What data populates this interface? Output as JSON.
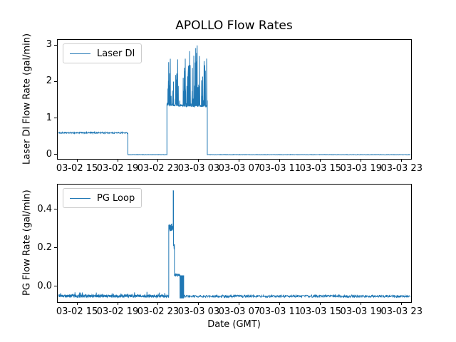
{
  "figure": {
    "background": "#ffffff",
    "title": "APOLLO Flow Rates"
  },
  "chart_data": [
    {
      "type": "line",
      "title": "APOLLO Flow Rates",
      "ylabel": "Laser DI Flow Rate (gal/min)",
      "xlabel": "",
      "line_color": "#1f77b4",
      "grid": false,
      "legend_position": "upper left",
      "x_axis": {
        "unit": "hours since 03-02 00:00 (GMT)",
        "xlim": [
          13.03,
          47.93
        ],
        "ticks": [
          {
            "t": 15,
            "label": "03-02 15"
          },
          {
            "t": 19,
            "label": "03-02 19"
          },
          {
            "t": 23,
            "label": "03-02 23"
          },
          {
            "t": 27,
            "label": "03-03 03"
          },
          {
            "t": 31,
            "label": "03-03 07"
          },
          {
            "t": 35,
            "label": "03-03 11"
          },
          {
            "t": 39,
            "label": "03-03 15"
          },
          {
            "t": 43,
            "label": "03-03 19"
          },
          {
            "t": 47,
            "label": "03-03 23"
          }
        ]
      },
      "y_axis": {
        "ylim": [
          -0.117,
          3.156
        ],
        "ticks": [
          {
            "v": 0,
            "label": "0"
          },
          {
            "v": 1,
            "label": "1"
          },
          {
            "v": 2,
            "label": "2"
          },
          {
            "v": 3,
            "label": "3"
          }
        ]
      },
      "series": [
        {
          "name": "Laser DI",
          "segments": [
            {
              "t_start": 13.03,
              "t_end": 19.92,
              "level": 0.6,
              "noise": 0.02,
              "note": "steady flow ~0.6 gal/min"
            },
            {
              "t_start": 19.92,
              "t_end": 23.79,
              "level": 0.0,
              "noise": 0.005,
              "note": "flow off"
            },
            {
              "t_start": 23.79,
              "t_end": 24.9,
              "level": 1.36,
              "noise": 0.025,
              "spike_prob": 0.33,
              "spike_max": 2.72,
              "note": "active, dense spikes to ~2.7"
            },
            {
              "t_start": 24.9,
              "t_end": 25.42,
              "level": 1.35,
              "noise": 0.02,
              "spike_prob": 0.07,
              "spike_max": 2.75,
              "note": "calmer interval"
            },
            {
              "t_start": 25.42,
              "t_end": 27.79,
              "level": 1.34,
              "noise": 0.025,
              "spike_prob": 0.38,
              "spike_max": 3.02,
              "note": "active, dense spikes to ~3.0"
            },
            {
              "t_start": 27.79,
              "t_end": 47.93,
              "level": 0.0,
              "noise": 0.005,
              "note": "flow off"
            }
          ]
        }
      ]
    },
    {
      "type": "line",
      "title": "",
      "ylabel": "PG Flow Rate (gal/min)",
      "xlabel": "Date (GMT)",
      "line_color": "#1f77b4",
      "grid": false,
      "legend_position": "upper left",
      "x_axis": {
        "unit": "hours since 03-02 00:00 (GMT)",
        "xlim": [
          13.03,
          47.93
        ],
        "ticks": [
          {
            "t": 15,
            "label": "03-02 15"
          },
          {
            "t": 19,
            "label": "03-02 19"
          },
          {
            "t": 23,
            "label": "03-02 23"
          },
          {
            "t": 27,
            "label": "03-03 03"
          },
          {
            "t": 31,
            "label": "03-03 07"
          },
          {
            "t": 35,
            "label": "03-03 11"
          },
          {
            "t": 39,
            "label": "03-03 15"
          },
          {
            "t": 43,
            "label": "03-03 19"
          },
          {
            "t": 47,
            "label": "03-03 23"
          }
        ]
      },
      "y_axis": {
        "ylim": [
          -0.0815,
          0.5333
        ],
        "ticks": [
          {
            "v": 0.0,
            "label": "0.0"
          },
          {
            "v": 0.2,
            "label": "0.2"
          },
          {
            "v": 0.4,
            "label": "0.4"
          }
        ]
      },
      "series": [
        {
          "name": "PG Loop",
          "segments": [
            {
              "t_start": 13.03,
              "t_end": 23.97,
              "level": -0.05,
              "noise": 0.008,
              "spike_prob": 0.06,
              "spike_max": -0.028,
              "note": "baseline ~-0.05 with small blips"
            },
            {
              "t_start": 23.97,
              "t_end": 24.41,
              "level": 0.31,
              "noise": 0.02,
              "note": "plateau ~0.31"
            },
            {
              "t_start": 24.41,
              "t_end": 24.44,
              "level": 0.5,
              "noise": 0.004,
              "note": "narrow peak to 0.5"
            },
            {
              "t_start": 24.44,
              "t_end": 24.53,
              "level": 0.21,
              "noise": 0.012,
              "note": "step down"
            },
            {
              "t_start": 24.53,
              "t_end": 25.08,
              "level": 0.06,
              "noise": 0.007,
              "note": "plateau ~0.06"
            },
            {
              "t_start": 25.08,
              "t_end": 25.45,
              "osc_hi": 0.058,
              "osc_lo": -0.062,
              "note": "rapid oscillation band"
            },
            {
              "t_start": 25.45,
              "t_end": 47.93,
              "level": -0.051,
              "noise": 0.006,
              "note": "baseline ~-0.05"
            }
          ]
        }
      ]
    }
  ]
}
